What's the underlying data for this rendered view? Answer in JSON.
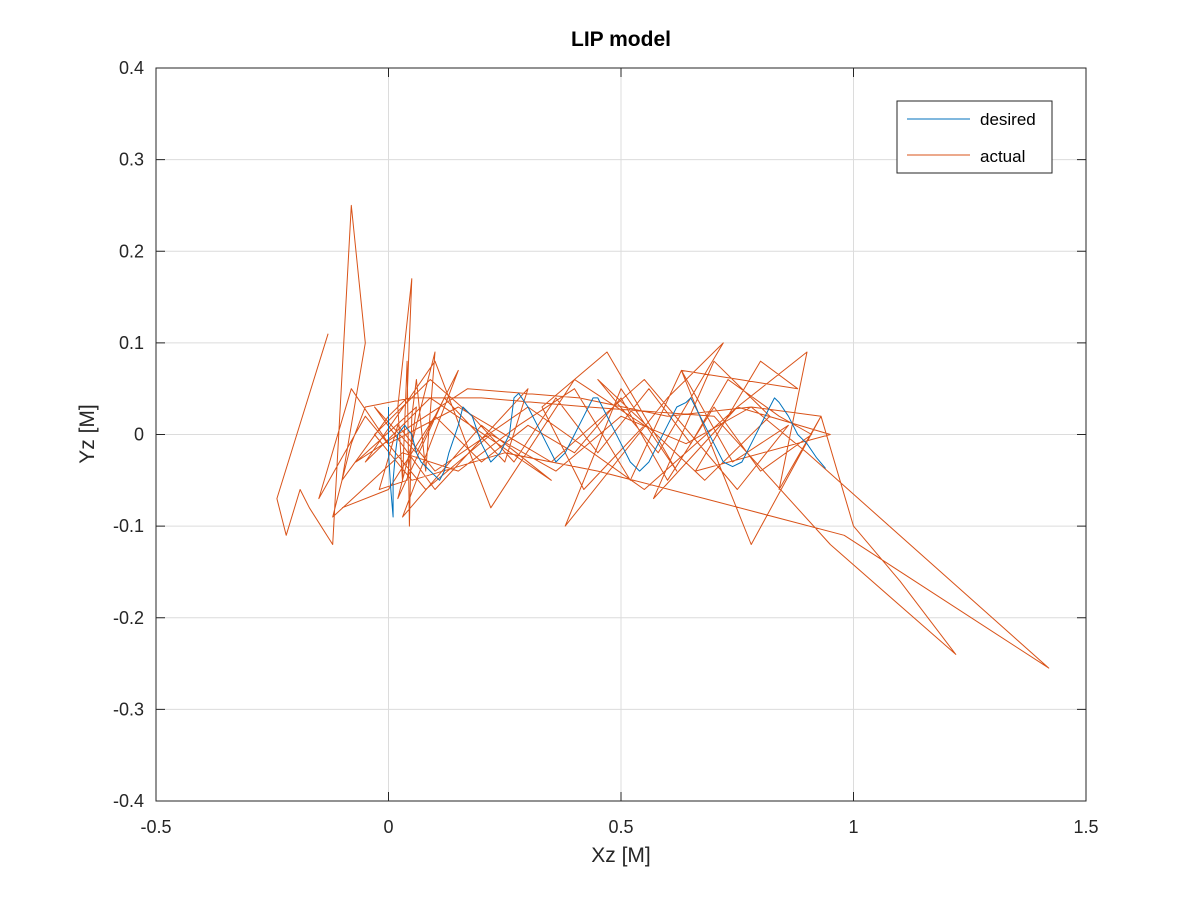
{
  "chart_data": {
    "type": "line",
    "title": "LIP model",
    "xlabel": "Xz [M]",
    "ylabel": "Yz [M]",
    "xlim": [
      -0.5,
      1.5
    ],
    "ylim": [
      -0.4,
      0.4
    ],
    "xticks": [
      -0.5,
      0,
      0.5,
      1,
      1.5
    ],
    "xtick_labels": [
      "-0.5",
      "0",
      "0.5",
      "1",
      "1.5"
    ],
    "yticks": [
      -0.4,
      -0.3,
      -0.2,
      -0.1,
      0,
      0.1,
      0.2,
      0.3,
      0.4
    ],
    "ytick_labels": [
      "-0.4",
      "-0.3",
      "-0.2",
      "-0.1",
      "0",
      "0.1",
      "0.2",
      "0.3",
      "0.4"
    ],
    "grid": true,
    "legend_position": "top-right",
    "series": [
      {
        "name": "desired",
        "color": "#0072BD",
        "x": [
          0.0,
          0.0,
          0.005,
          0.01,
          0.01,
          0.015,
          0.02,
          0.035,
          0.05,
          0.06,
          0.07,
          0.09,
          0.11,
          0.12,
          0.13,
          0.15,
          0.16,
          0.18,
          0.2,
          0.22,
          0.24,
          0.26,
          0.27,
          0.28,
          0.3,
          0.32,
          0.34,
          0.36,
          0.38,
          0.4,
          0.42,
          0.44,
          0.45,
          0.46,
          0.48,
          0.5,
          0.52,
          0.54,
          0.56,
          0.58,
          0.6,
          0.62,
          0.64,
          0.65,
          0.66,
          0.68,
          0.7,
          0.72,
          0.74,
          0.76,
          0.78,
          0.8,
          0.82,
          0.83,
          0.84,
          0.86,
          0.88,
          0.9,
          0.92,
          0.94
        ],
        "y": [
          0.03,
          -0.02,
          -0.06,
          -0.09,
          -0.05,
          -0.02,
          0.0,
          0.01,
          0.0,
          -0.02,
          -0.03,
          -0.04,
          -0.05,
          -0.04,
          -0.02,
          0.01,
          0.03,
          0.02,
          -0.01,
          -0.03,
          -0.02,
          0.0,
          0.04,
          0.045,
          0.03,
          0.01,
          -0.01,
          -0.03,
          -0.02,
          0.0,
          0.02,
          0.04,
          0.04,
          0.03,
          0.01,
          -0.01,
          -0.03,
          -0.04,
          -0.03,
          -0.01,
          0.01,
          0.03,
          0.035,
          0.04,
          0.03,
          0.01,
          -0.01,
          -0.03,
          -0.035,
          -0.03,
          -0.01,
          0.01,
          0.03,
          0.04,
          0.035,
          0.02,
          0.0,
          -0.01,
          -0.025,
          -0.037
        ]
      },
      {
        "name": "actual",
        "color": "#D95319",
        "x": [
          -0.13,
          -0.24,
          -0.22,
          -0.19,
          -0.17,
          -0.12,
          -0.08,
          -0.05,
          -0.1,
          0.0,
          0.04,
          0.05,
          0.02,
          0.03,
          0.04,
          0.045,
          0.05,
          0.06,
          0.08,
          0.1,
          0.02,
          0.12,
          0.25,
          0.3,
          0.1,
          -0.03,
          0.06,
          0.15,
          0.03,
          0.2,
          0.35,
          0.09,
          -0.05,
          0.1,
          0.22,
          0.4,
          0.55,
          0.42,
          0.33,
          0.47,
          0.62,
          0.5,
          0.38,
          0.6,
          0.72,
          0.58,
          0.45,
          0.68,
          0.82,
          0.7,
          0.57,
          0.75,
          0.9,
          0.84,
          0.93,
          0.78,
          0.63,
          0.88,
          0.8,
          0.66,
          0.95,
          0.75,
          0.55,
          0.3,
          0.1,
          0.02,
          -0.02,
          0.04,
          0.06,
          -0.07,
          0.17,
          0.41,
          0.6,
          0.78,
          0.93,
          1.0,
          1.1,
          1.22,
          0.95,
          0.7,
          0.43,
          0.2,
          0.05,
          -0.05,
          -0.08,
          -0.12,
          0.03,
          0.15,
          0.28,
          0.4,
          0.52,
          0.63,
          0.74,
          0.86,
          0.75,
          0.55,
          0.35,
          0.15,
          0.0,
          -0.08,
          -0.15,
          -0.05,
          0.08,
          0.22,
          0.36,
          0.5,
          0.64,
          0.78,
          0.9,
          1.42,
          0.98,
          0.68,
          0.45,
          0.25,
          0.05,
          -0.03,
          0.09,
          0.18,
          0.27,
          0.36,
          0.45,
          0.56,
          0.65,
          0.73,
          0.84,
          0.91,
          0.8,
          0.7,
          0.6,
          0.5,
          0.4,
          0.3,
          0.2,
          0.1,
          0.0,
          -0.1
        ],
        "y": [
          0.11,
          -0.07,
          -0.11,
          -0.06,
          -0.08,
          -0.12,
          0.25,
          0.1,
          -0.05,
          0.02,
          0.04,
          0.17,
          0.03,
          -0.05,
          0.08,
          -0.1,
          0.02,
          0.06,
          -0.04,
          0.09,
          -0.07,
          0.04,
          -0.03,
          0.05,
          -0.06,
          0.03,
          -0.02,
          0.07,
          -0.09,
          0.01,
          -0.05,
          0.04,
          -0.03,
          0.08,
          -0.08,
          0.06,
          0.01,
          -0.06,
          0.03,
          0.09,
          -0.04,
          0.05,
          -0.1,
          0.04,
          0.1,
          -0.02,
          0.06,
          -0.05,
          0.02,
          0.08,
          -0.07,
          0.03,
          0.09,
          -0.06,
          0.02,
          -0.12,
          0.07,
          0.05,
          0.08,
          -0.04,
          0.0,
          0.03,
          -0.06,
          0.03,
          -0.04,
          0.01,
          -0.06,
          -0.05,
          0.03,
          -0.03,
          0.05,
          0.04,
          0.02,
          0.03,
          0.02,
          -0.1,
          -0.16,
          -0.24,
          -0.12,
          0.02,
          0.03,
          0.04,
          0.04,
          0.03,
          -0.01,
          -0.09,
          -0.02,
          -0.04,
          0.01,
          0.05,
          -0.05,
          0.07,
          -0.03,
          0.01,
          -0.06,
          0.06,
          -0.03,
          0.03,
          -0.01,
          0.05,
          -0.07,
          0.02,
          -0.06,
          0.0,
          -0.04,
          0.02,
          -0.01,
          0.03,
          -0.02,
          -0.255,
          -0.11,
          -0.07,
          -0.04,
          -0.02,
          -0.05,
          0.0,
          0.06,
          0.02,
          -0.03,
          0.04,
          -0.02,
          0.05,
          -0.01,
          0.06,
          0.02,
          0.0,
          -0.04,
          0.03,
          -0.05,
          0.04,
          -0.02,
          0.01,
          -0.03,
          0.02,
          -0.06,
          -0.08
        ]
      }
    ]
  }
}
